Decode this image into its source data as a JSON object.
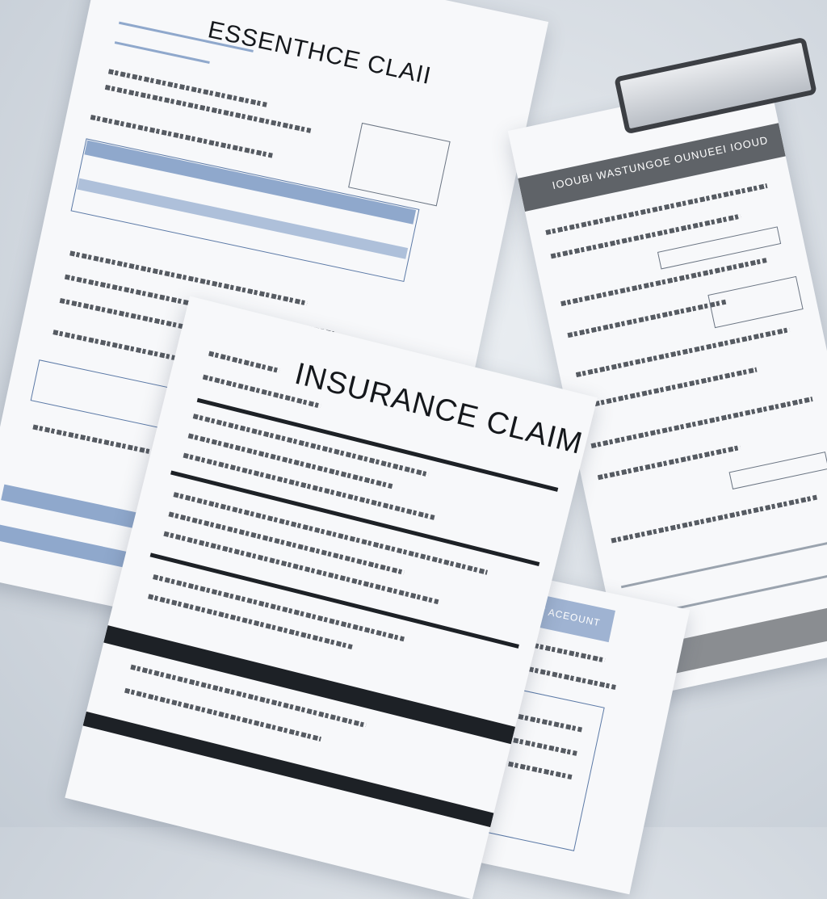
{
  "documents": [
    {
      "title": "ESSENTHCE CLAII"
    },
    {
      "title": "INSURANCE CLAIM"
    },
    {
      "header": "IOOUBI WASTUNGOE OUNUEEI IOOUD"
    },
    {
      "header": "ANOUA SEAT ACEOUNT"
    }
  ],
  "colors": {
    "background": "#d3d9e0",
    "paper": "#f7f8fa",
    "accent_blue": "#8fa8cc",
    "dark_bar": "#1d2126",
    "clipboard_header": "#5f6368"
  }
}
